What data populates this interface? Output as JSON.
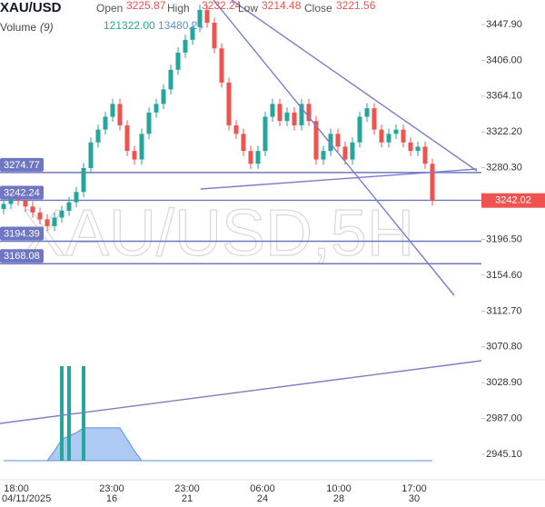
{
  "chart_data": {
    "type": "candlestick",
    "symbol": "XAU/USD",
    "watermark": "XAU/USD,5H",
    "header": {
      "open_label": "Open",
      "open": "3225.87",
      "high_label": "High",
      "high": "3232.24",
      "low_label": "Low",
      "low": "3214.48",
      "close_label": "Close",
      "close": "3221.56",
      "volume_label": "Volume",
      "volume_period": "(9)",
      "volume": "121322.00",
      "volume_ma": "13480.24"
    },
    "up_color": "#26a69a",
    "down_color": "#ef5350",
    "open": [
      3232,
      3238,
      3245,
      3242,
      3235,
      3228,
      3220,
      3212,
      3222,
      3230,
      3240,
      3252,
      3280,
      3310,
      3325,
      3340,
      3355,
      3330,
      3300,
      3290,
      3320,
      3345,
      3355,
      3372,
      3395,
      3415,
      3430,
      3445,
      3465,
      3450,
      3420,
      3380,
      3330,
      3320,
      3300,
      3285,
      3300,
      3340,
      3355,
      3335,
      3345,
      3330,
      3355,
      3335,
      3290,
      3300,
      3320,
      3305,
      3290,
      3310,
      3340,
      3350,
      3325,
      3310,
      3320,
      3325,
      3310,
      3300,
      3305,
      3285
    ],
    "high": [
      3244,
      3251,
      3251,
      3248,
      3241,
      3234,
      3226,
      3228,
      3236,
      3246,
      3258,
      3286,
      3316,
      3331,
      3346,
      3361,
      3361,
      3336,
      3306,
      3326,
      3351,
      3361,
      3378,
      3401,
      3421,
      3436,
      3451,
      3471,
      3471,
      3456,
      3426,
      3386,
      3336,
      3326,
      3306,
      3306,
      3346,
      3361,
      3361,
      3351,
      3351,
      3361,
      3361,
      3341,
      3306,
      3326,
      3326,
      3311,
      3316,
      3346,
      3356,
      3356,
      3331,
      3326,
      3331,
      3331,
      3316,
      3311,
      3311,
      3291
    ],
    "low": [
      3226,
      3232,
      3236,
      3229,
      3222,
      3214,
      3206,
      3206,
      3216,
      3224,
      3234,
      3246,
      3274,
      3304,
      3319,
      3334,
      3324,
      3294,
      3284,
      3284,
      3314,
      3339,
      3349,
      3366,
      3389,
      3409,
      3424,
      3439,
      3444,
      3414,
      3374,
      3324,
      3314,
      3294,
      3279,
      3279,
      3294,
      3334,
      3329,
      3329,
      3324,
      3324,
      3329,
      3284,
      3284,
      3294,
      3299,
      3284,
      3284,
      3304,
      3334,
      3319,
      3304,
      3304,
      3314,
      3304,
      3294,
      3294,
      3279,
      3236
    ],
    "close": [
      3238,
      3245,
      3242,
      3235,
      3228,
      3220,
      3212,
      3222,
      3230,
      3240,
      3252,
      3280,
      3310,
      3325,
      3340,
      3355,
      3330,
      3300,
      3290,
      3320,
      3345,
      3355,
      3372,
      3395,
      3415,
      3430,
      3445,
      3465,
      3450,
      3420,
      3380,
      3330,
      3320,
      3300,
      3285,
      3300,
      3340,
      3355,
      3335,
      3345,
      3330,
      3355,
      3335,
      3290,
      3300,
      3320,
      3305,
      3290,
      3310,
      3340,
      3350,
      3325,
      3310,
      3320,
      3325,
      3310,
      3300,
      3305,
      3285,
      3242
    ],
    "volume_values": [
      0,
      0,
      0,
      0,
      0,
      0,
      0,
      0,
      115000,
      115000,
      0,
      115000,
      0,
      0,
      0,
      0,
      0,
      0,
      0,
      0,
      0,
      0,
      0,
      0,
      0,
      0,
      0,
      0,
      0,
      0,
      0,
      0,
      0,
      0,
      0,
      0,
      0,
      0,
      0,
      0,
      0,
      0,
      0,
      0,
      0,
      0,
      0,
      0,
      0,
      0,
      0,
      0,
      0,
      0,
      0,
      0,
      0,
      0,
      0,
      0
    ],
    "volume_ma": [
      0,
      0,
      0,
      0,
      0,
      0,
      0,
      12000,
      26000,
      30000,
      34000,
      40000,
      40000,
      40000,
      40000,
      40000,
      40000,
      26000,
      12000,
      0,
      0,
      0,
      0,
      0,
      0,
      0,
      0,
      0,
      0,
      0,
      0,
      0,
      0,
      0,
      0,
      0,
      0,
      0,
      0,
      0,
      0,
      0,
      0,
      0,
      0,
      0,
      0,
      0,
      0,
      0,
      0,
      0,
      0,
      0,
      0,
      0,
      0,
      0,
      0,
      0
    ],
    "volume_ylim": [
      0,
      115000
    ],
    "volume_ma_color": "#90b8f0",
    "ylim": [
      2934.5,
      3476.6
    ],
    "yticks": [
      {
        "value": 3447.9,
        "label": "3447.90"
      },
      {
        "value": 3406,
        "label": "3406.00"
      },
      {
        "value": 3364.1,
        "label": "3364.10"
      },
      {
        "value": 3322.2,
        "label": "3322.20"
      },
      {
        "value": 3280.3,
        "label": "3280.30"
      },
      {
        "value": 3196.5,
        "label": "3196.50"
      },
      {
        "value": 3154.6,
        "label": "3154.60"
      },
      {
        "value": 3112.7,
        "label": "3112.70"
      },
      {
        "value": 3070.8,
        "label": "3070.80"
      },
      {
        "value": 3028.9,
        "label": "3028.90"
      },
      {
        "value": 2987,
        "label": "2987.00"
      },
      {
        "value": 2945.1,
        "label": "2945.10"
      }
    ],
    "price_lines": [
      3274.77,
      3242.24,
      3194.39,
      3168.08
    ],
    "price_line_color": "#6f76c2",
    "last_price": 3242.02,
    "last_price_color": "#ef5350",
    "x_labels": [
      {
        "time": "18:00",
        "date": "04/11/2025"
      },
      {
        "time": "23:00",
        "date": "16"
      },
      {
        "time": "23:00",
        "date": "21"
      },
      {
        "time": "06:00",
        "date": "24"
      },
      {
        "time": "10:00",
        "date": "28"
      },
      {
        "time": "17:00",
        "date": "30"
      }
    ]
  }
}
